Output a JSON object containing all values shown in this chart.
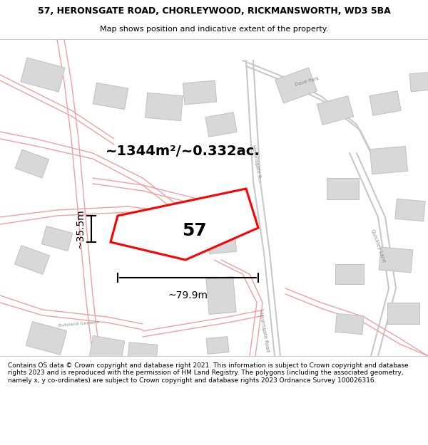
{
  "title_line1": "57, HERONSGATE ROAD, CHORLEYWOOD, RICKMANSWORTH, WD3 5BA",
  "title_line2": "Map shows position and indicative extent of the property.",
  "footer_text": "Contains OS data © Crown copyright and database right 2021. This information is subject to Crown copyright and database rights 2023 and is reproduced with the permission of HM Land Registry. The polygons (including the associated geometry, namely x, y co-ordinates) are subject to Crown copyright and database rights 2023 Ordnance Survey 100026316.",
  "area_label": "~1344m²/~0.332ac.",
  "width_label": "~79.9m",
  "height_label": "~35.5m",
  "number_label": "57",
  "map_bg": "#f7f4f2",
  "road_color": "#f0a0a0",
  "road_color2": "#c8c8c8",
  "building_fill": "#d8d8d8",
  "building_edge": "#c0c0c0",
  "property_color": "#ff0000",
  "property_fill": "#ffffff",
  "title_fontsize": 9,
  "subtitle_fontsize": 8,
  "footer_fontsize": 6.5
}
